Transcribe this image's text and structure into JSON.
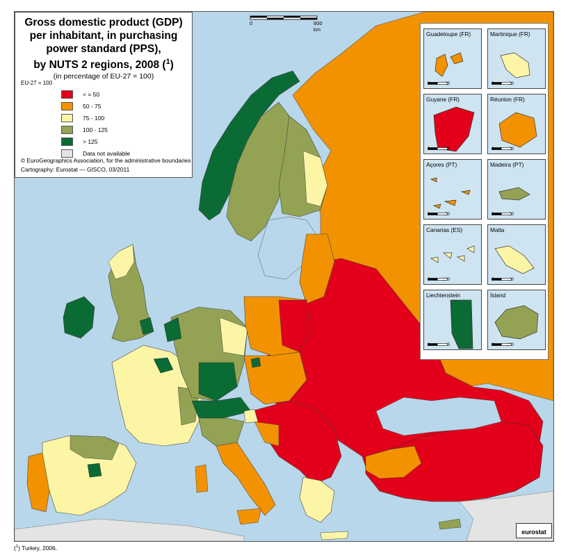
{
  "legend": {
    "title_lines": [
      "Gross domestic product (GDP)",
      "per inhabitant, in purchasing",
      "power standard (PPS),",
      "by NUTS 2 regions, 2008"
    ],
    "title_note": "1",
    "subtitle": "(in percentage of EU-27 = 100)",
    "base_label": "EU-27 = 100",
    "classes": [
      {
        "label": "< = 50",
        "color": "#e2001a"
      },
      {
        "label": "50 - 75",
        "color": "#f39200"
      },
      {
        "label": "75 - 100",
        "color": "#fdf5a6"
      },
      {
        "label": "100 - 125",
        "color": "#93a353"
      },
      {
        "label": "> 125",
        "color": "#0b6b35"
      },
      {
        "label": "Data not available",
        "color": "#e4e4e4"
      }
    ],
    "credit_1": "© EuroGeographics Association, for the administrative boundaries",
    "credit_2": "Cartography: Eurostat — GISCO, 03/2011"
  },
  "scale": {
    "start": "0",
    "end": "600 km"
  },
  "insets": [
    {
      "name": "Guadeloupe (FR)",
      "scale_end": "25",
      "fill": "#f39200"
    },
    {
      "name": "Martinique (FR)",
      "scale_end": "20",
      "fill": "#fdf5a6"
    },
    {
      "name": "Guyane (FR)",
      "scale_end": "100",
      "fill": "#e2001a"
    },
    {
      "name": "Réunion (FR)",
      "scale_end": "20",
      "fill": "#f39200"
    },
    {
      "name": "Açores (PT)",
      "scale_end": "50",
      "fill": "#f39200"
    },
    {
      "name": "Madeira (PT)",
      "scale_end": "20",
      "fill": "#93a353"
    },
    {
      "name": "Canarias (ES)",
      "scale_end": "100",
      "fill": "#fdf5a6"
    },
    {
      "name": "Malta",
      "scale_end": "10",
      "fill": "#fdf5a6"
    },
    {
      "name": "Liechtenstein",
      "scale_end": "5",
      "fill": "#0b6b35"
    },
    {
      "name": "Ísland",
      "scale_end": "100",
      "fill": "#93a353"
    }
  ],
  "logo": "eurostat",
  "footnote_num": "1",
  "footnote_text": "Turkey, 2006.",
  "colors": {
    "sea": "#b8d7ea",
    "nonmember": "#e4e4e4",
    "russia": "#f39200"
  }
}
